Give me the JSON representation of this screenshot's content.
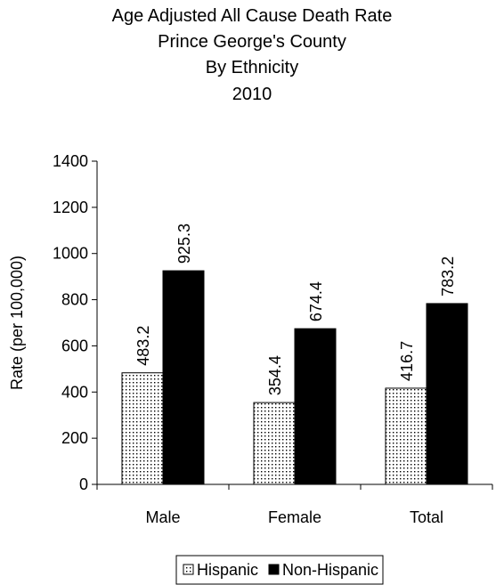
{
  "chart_data": {
    "type": "bar",
    "title_lines": [
      "Age Adjusted All Cause Death Rate",
      "Prince George's County",
      "By Ethnicity",
      "2010"
    ],
    "categories": [
      "Male",
      "Female",
      "Total"
    ],
    "series": [
      {
        "name": "Hispanic",
        "values": [
          483.2,
          354.4,
          416.7
        ],
        "value_labels": [
          "483.2",
          "354.4",
          "416.7"
        ],
        "fill": "dotted"
      },
      {
        "name": "Non-Hispanic",
        "values": [
          925.3,
          674.4,
          783.2
        ],
        "value_labels": [
          "925.3",
          "674.4",
          "783.2"
        ],
        "fill": "solid-black"
      }
    ],
    "xlabel": "",
    "ylabel": "Rate (per 100,000)",
    "ylim": [
      0,
      1400
    ],
    "yticks": [
      0,
      200,
      400,
      600,
      800,
      1000,
      1200,
      1400
    ],
    "ytick_labels": [
      "0",
      "200",
      "400",
      "600",
      "800",
      "1000",
      "1200",
      "1400"
    ],
    "grid": false,
    "legend_position": "bottom",
    "colors": {
      "bar_black": "#000000",
      "dot": "#000000",
      "background": "#ffffff"
    }
  }
}
